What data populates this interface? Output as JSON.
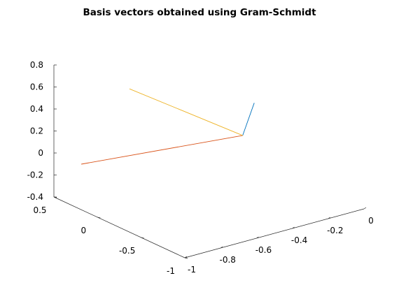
{
  "chart_data": {
    "type": "line",
    "projection": "3d",
    "title": "Basis vectors obtained using Gram-Schmidt",
    "xlabel": "",
    "ylabel": "",
    "zlabel": "",
    "grid": false,
    "legend": "none",
    "xlim": [
      -1,
      0
    ],
    "ylim": [
      -1,
      0.5
    ],
    "zlim": [
      -0.4,
      0.8
    ],
    "x_ticks": [
      "-1",
      "-0.8",
      "-0.6",
      "-0.4",
      "-0.2",
      "0"
    ],
    "y_ticks": [
      "-1",
      "-0.5",
      "0",
      "0.5"
    ],
    "z_ticks": [
      "-0.4",
      "-0.2",
      "0",
      "0.2",
      "0.4",
      "0.6",
      "0.8"
    ],
    "series": [
      {
        "color": "#0072bd",
        "points": [
          [
            -0.37,
            -0.37,
            0.2
          ],
          [
            -0.15,
            -0.05,
            0.28
          ]
        ]
      },
      {
        "color": "#d95319",
        "points": [
          [
            -0.37,
            -0.37,
            0.2
          ],
          [
            -0.93,
            0.33,
            -0.07
          ]
        ]
      },
      {
        "color": "#edb120",
        "points": [
          [
            -0.37,
            -0.37,
            0.2
          ],
          [
            -0.69,
            0.27,
            0.53
          ]
        ]
      }
    ]
  }
}
